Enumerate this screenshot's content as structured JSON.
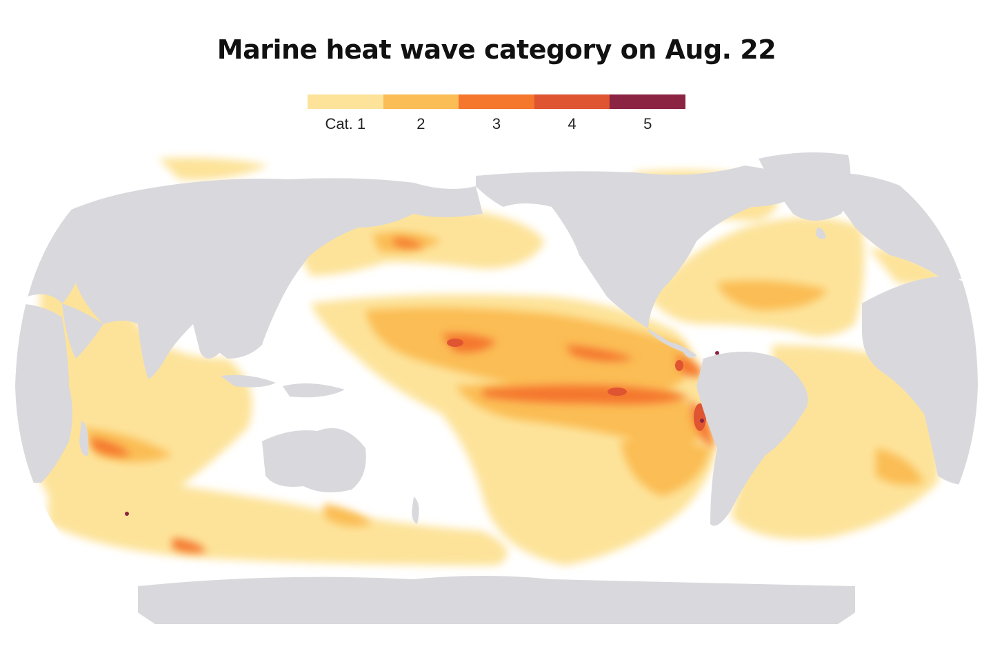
{
  "title": "Marine heat wave category on Aug. 22",
  "legend": {
    "items": [
      {
        "label": "Cat. 1",
        "color": "#fde39a"
      },
      {
        "label": "2",
        "color": "#fbbd55"
      },
      {
        "label": "3",
        "color": "#f5772d"
      },
      {
        "label": "4",
        "color": "#df5431"
      },
      {
        "label": "5",
        "color": "#8b2342"
      }
    ]
  },
  "map": {
    "projection": "robinson",
    "center": "pacific",
    "colors": {
      "land": "#d9d8dc",
      "ocean": "#ffffff"
    }
  }
}
